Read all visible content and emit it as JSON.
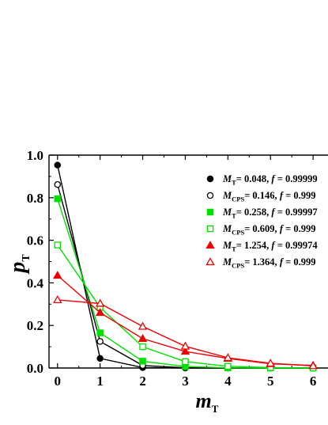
{
  "chart_data": {
    "type": "line",
    "xlabel": {
      "main": "m",
      "sub": "T"
    },
    "ylabel": {
      "main": "p",
      "sub": "T"
    },
    "xlim": [
      -0.2,
      6.35
    ],
    "ylim": [
      0,
      1.0
    ],
    "x_ticks": [
      "0",
      "1",
      "2",
      "3",
      "4",
      "5",
      "6"
    ],
    "y_ticks": [
      "0.0",
      "0.2",
      "0.4",
      "0.6",
      "0.8",
      "1.0"
    ],
    "grid": false,
    "legend_position": "top-right",
    "series": [
      {
        "name": {
          "m": "M",
          "sub": "T",
          "mval": "= 0.048,",
          "f": "f",
          "fval": " = 0.99999"
        },
        "color": "#000000",
        "marker": "filled-circle",
        "x": [
          0,
          1,
          2,
          3,
          4,
          5,
          6
        ],
        "y": [
          0.953,
          0.045,
          0.002,
          0.0,
          0.0,
          0.0,
          0.0
        ]
      },
      {
        "name": {
          "m": "M",
          "sub": "CPS",
          "mval": "= 0.146,",
          "f": "f",
          "fval": " = 0.999"
        },
        "color": "#000000",
        "marker": "open-circle",
        "x": [
          0,
          1,
          2,
          3,
          4,
          5,
          6
        ],
        "y": [
          0.862,
          0.125,
          0.012,
          0.001,
          0.0,
          0.0,
          0.0
        ]
      },
      {
        "name": {
          "m": "M",
          "sub": "T",
          "mval": "= 0.258,",
          "f": "f",
          "fval": " = 0.99997"
        },
        "color": "#00e000",
        "marker": "filled-square",
        "x": [
          0,
          1,
          2,
          3,
          4,
          5,
          6
        ],
        "y": [
          0.795,
          0.165,
          0.032,
          0.007,
          0.001,
          0.0,
          0.0
        ]
      },
      {
        "name": {
          "m": "M",
          "sub": "CPS",
          "mval": "= 0.609,",
          "f": "f",
          "fval": " = 0.999"
        },
        "color": "#00e000",
        "marker": "open-square",
        "x": [
          0,
          1,
          2,
          3,
          4,
          5,
          6
        ],
        "y": [
          0.578,
          0.285,
          0.1,
          0.03,
          0.008,
          0.002,
          0.0
        ]
      },
      {
        "name": {
          "m": "M",
          "sub": "T",
          "mval": "= 1.254,",
          "f": "f",
          "fval": " = 0.99974"
        },
        "color": "#ee0000",
        "marker": "filled-triangle",
        "x": [
          0,
          1,
          2,
          3,
          4,
          5,
          6
        ],
        "y": [
          0.435,
          0.26,
          0.138,
          0.078,
          0.045,
          0.02,
          0.012
        ]
      },
      {
        "name": {
          "m": "M",
          "sub": "CPS",
          "mval": "= 1.364,",
          "f": "f",
          "fval": " = 0.999"
        },
        "color": "#ee0000",
        "marker": "open-triangle",
        "x": [
          0,
          1,
          2,
          3,
          4,
          5,
          6
        ],
        "y": [
          0.32,
          0.303,
          0.195,
          0.102,
          0.048,
          0.022,
          0.01
        ]
      }
    ]
  }
}
